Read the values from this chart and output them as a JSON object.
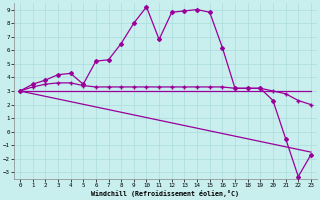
{
  "xlabel": "Windchill (Refroidissement éolien,°C)",
  "bg_color": "#c8eeee",
  "line_color": "#990099",
  "grid_color": "#aadcdc",
  "xlim": [
    -0.5,
    23.5
  ],
  "ylim": [
    -3.5,
    9.5
  ],
  "xticks": [
    0,
    1,
    2,
    3,
    4,
    5,
    6,
    7,
    8,
    9,
    10,
    11,
    12,
    13,
    14,
    15,
    16,
    17,
    18,
    19,
    20,
    21,
    22,
    23
  ],
  "yticks": [
    -3,
    -2,
    -1,
    0,
    1,
    2,
    3,
    4,
    5,
    6,
    7,
    8,
    9
  ],
  "line1_x": [
    0,
    1,
    2,
    3,
    4,
    5,
    6,
    7,
    8,
    9,
    10,
    11,
    12,
    13,
    14,
    15,
    16,
    17,
    18,
    19,
    20,
    21,
    22,
    23
  ],
  "line1_y": [
    3.0,
    3.5,
    3.8,
    4.2,
    4.3,
    3.5,
    5.2,
    5.3,
    6.5,
    8.0,
    9.2,
    6.8,
    8.8,
    8.9,
    9.0,
    8.8,
    6.2,
    3.2,
    3.2,
    3.2,
    2.3,
    -0.5,
    -3.3,
    -1.7
  ],
  "line2_x": [
    0,
    1,
    2,
    3,
    4,
    5,
    6,
    7,
    8,
    9,
    10,
    11,
    12,
    13,
    14,
    15,
    16,
    17,
    18,
    19,
    20,
    21,
    22,
    23
  ],
  "line2_y": [
    3.0,
    3.3,
    3.5,
    3.6,
    3.6,
    3.4,
    3.3,
    3.3,
    3.3,
    3.3,
    3.3,
    3.3,
    3.3,
    3.3,
    3.3,
    3.3,
    3.3,
    3.2,
    3.2,
    3.2,
    3.0,
    2.8,
    2.3,
    2.0
  ],
  "line3_x": [
    0,
    23
  ],
  "line3_y": [
    3.0,
    3.0
  ],
  "line4_x": [
    0,
    23
  ],
  "line4_y": [
    3.0,
    -1.5
  ]
}
